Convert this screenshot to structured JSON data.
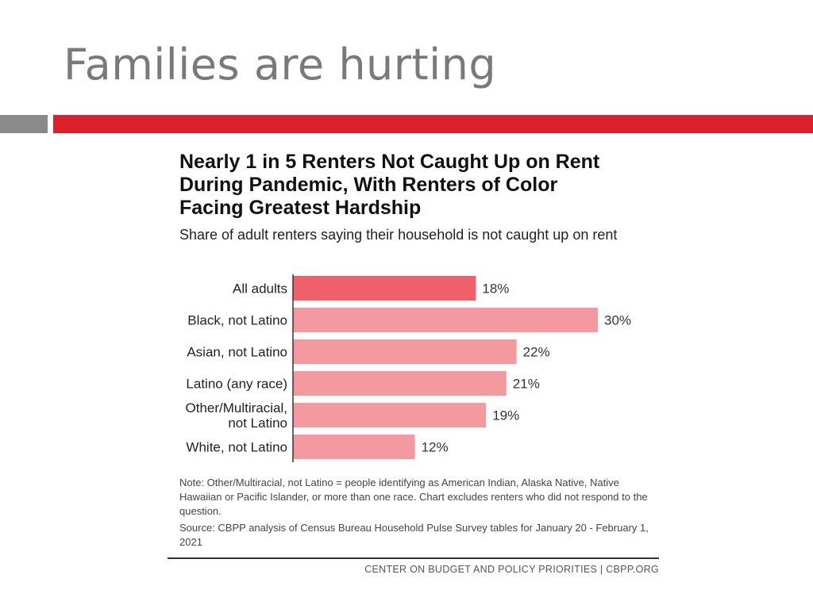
{
  "slide": {
    "title": "Families are hurting"
  },
  "colors": {
    "accent_red": "#dc1f2b",
    "accent_gray": "#8a8a8a",
    "highlight_bar": "#f0606a",
    "bar": "#f4999f"
  },
  "chart_data": {
    "type": "bar",
    "orientation": "horizontal",
    "title_lines": [
      "Nearly 1 in 5 Renters Not Caught Up on Rent",
      "During Pandemic, With Renters of Color",
      "Facing Greatest Hardship"
    ],
    "subtitle": "Share of adult renters saying their household is not caught up on rent",
    "categories": [
      [
        "All adults"
      ],
      [
        "Black, not Latino"
      ],
      [
        "Asian, not Latino"
      ],
      [
        "Latino (any race)"
      ],
      [
        "Other/Multiracial,",
        "not Latino"
      ],
      [
        "White, not Latino"
      ]
    ],
    "values": [
      18,
      30,
      22,
      21,
      19,
      12
    ],
    "value_labels": [
      "18%",
      "30%",
      "22%",
      "21%",
      "19%",
      "12%"
    ],
    "highlight_index": 0,
    "xlim": [
      0,
      30
    ],
    "grid": false
  },
  "notes": {
    "note": "Note: Other/Multiracial, not Latino = people identifying as American Indian, Alaska Native, Native Hawaiian or Pacific Islander, or more than one race. Chart excludes renters who did not respond to the question.",
    "source": "Source: CBPP analysis of Census Bureau Household Pulse Survey tables for January 20 - February 1, 2021"
  },
  "footer": {
    "credit": "CENTER ON BUDGET AND POLICY PRIORITIES | CBPP.ORG"
  }
}
